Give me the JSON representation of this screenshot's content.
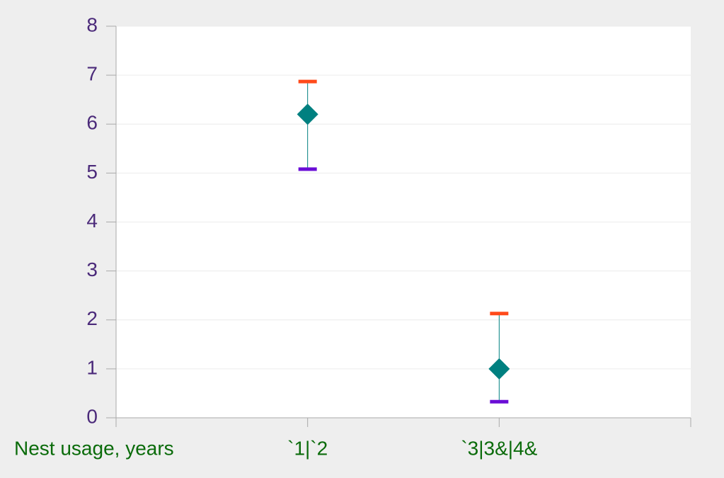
{
  "chart_data": {
    "type": "hilo",
    "x_label": "Nest usage, years",
    "categories": [
      "`1|`2",
      "`3|3&|4&"
    ],
    "values": [
      6.2,
      1.0
    ],
    "high": [
      6.87,
      2.13
    ],
    "low": [
      5.08,
      0.33
    ],
    "color": "#008080",
    "high_color": "#ff4a1a",
    "low_color": "#6a0dd6",
    "ylim": [
      0,
      8
    ],
    "yticks": [
      0,
      1,
      2,
      3,
      4,
      5,
      6,
      7,
      8
    ],
    "grid": true
  }
}
